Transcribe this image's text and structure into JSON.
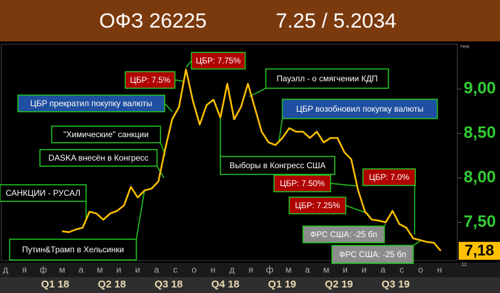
{
  "chart_data": {
    "type": "line",
    "title": "ОФЗ 26225",
    "subtitle": "7.25 / 5.2034",
    "y_axis_label": "Yield",
    "corner_label": "12",
    "color": "#ffc000",
    "values": [
      7.4,
      7.39,
      7.42,
      7.44,
      7.62,
      7.6,
      7.53,
      7.6,
      7.63,
      7.69,
      7.9,
      7.78,
      7.86,
      7.88,
      7.96,
      8.33,
      8.66,
      8.8,
      9.22,
      8.87,
      8.6,
      8.82,
      8.88,
      8.68,
      9.06,
      8.66,
      8.8,
      9.06,
      8.79,
      8.52,
      8.4,
      8.37,
      8.45,
      8.56,
      8.52,
      8.52,
      8.45,
      8.52,
      8.4,
      8.45,
      8.45,
      8.29,
      8.21,
      7.86,
      7.62,
      7.53,
      7.52,
      7.5,
      7.63,
      7.48,
      7.44,
      7.32,
      7.3,
      7.28,
      7.27,
      7.18
    ],
    "current": {
      "value": 7.18,
      "label": "7,18"
    },
    "ylim": [
      7.07,
      9.49
    ],
    "yticks": [
      {
        "value": 7.5,
        "label": "7,50"
      },
      {
        "value": 8,
        "label": "8,00"
      },
      {
        "value": 8.5,
        "label": "8,50"
      },
      {
        "value": 9,
        "label": "9,00"
      }
    ],
    "months": [
      "д",
      "я",
      "ф",
      "м",
      "а",
      "м",
      "и",
      "и",
      "а",
      "с",
      "о",
      "н",
      "д",
      "я",
      "ф",
      "м",
      "а",
      "м",
      "и",
      "и",
      "а",
      "с",
      "о",
      "н"
    ],
    "quarters": [
      "Q1 18",
      "Q2 18",
      "Q3 18",
      "Q4 18",
      "Q1 19",
      "Q2 19",
      "Q3 19"
    ],
    "annotations": [
      {
        "text": "ЦБР: 7.75%",
        "style": "red"
      },
      {
        "text": "ЦБР: 7.5%",
        "style": "red"
      },
      {
        "text": "ЦБР прекратил покупку валюты",
        "style": "blue"
      },
      {
        "text": "\"Химические\" санкции",
        "style": "plain"
      },
      {
        "text": "DASKA внесён в Конгресс",
        "style": "plain"
      },
      {
        "text": "САНКЦИИ - РУСАЛ",
        "style": "plain"
      },
      {
        "text": "Путин&Трамп в Хельсинки",
        "style": "plain"
      },
      {
        "text": "Пауэлл - о смягчении КДП",
        "style": "plain"
      },
      {
        "text": "ЦБР возобновил покупку валюты",
        "style": "blue"
      },
      {
        "text": "Выборы в Конгресс США",
        "style": "plain"
      },
      {
        "text": "ЦБР: 7.50%",
        "style": "red"
      },
      {
        "text": "ЦБР: 7.0%",
        "style": "red"
      },
      {
        "text": "ЦБР: 7.25%",
        "style": "red"
      },
      {
        "text": "ФРС США: -25 бп",
        "style": "gray"
      },
      {
        "text": "ФРС США: -25 бп",
        "style": "gray"
      }
    ]
  }
}
